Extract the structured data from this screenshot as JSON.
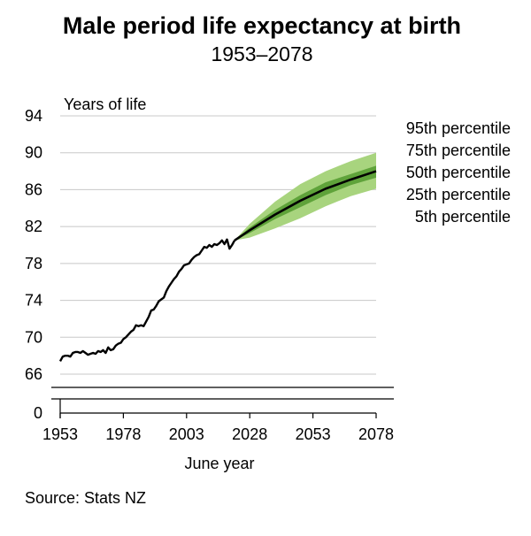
{
  "chart_data": {
    "type": "line",
    "title": "Male period life expectancy at birth",
    "subtitle": "1953–2078",
    "ylabel": "Years of life",
    "xlabel": "June year",
    "source": "Source: Stats NZ",
    "ylim": [
      66,
      94
    ],
    "xlim": [
      1953,
      2078
    ],
    "y_ticks": [
      "94",
      "90",
      "86",
      "82",
      "78",
      "74",
      "70",
      "66"
    ],
    "y_zero_tick": "0",
    "x_ticks": [
      "1953",
      "1978",
      "2003",
      "2028",
      "2053",
      "2078"
    ],
    "grid": true,
    "legend_position": "right",
    "band_labels": [
      "95th percentile",
      "75th percentile",
      "50th percentile",
      "25th percentile",
      "5th percentile"
    ],
    "colors": {
      "historical": "#000000",
      "median": "#000000",
      "band_outer": "#a8d47e",
      "band_inner": "#5fa33a"
    },
    "historical": {
      "x": [
        1953,
        1954,
        1955,
        1956,
        1957,
        1958,
        1959,
        1960,
        1961,
        1962,
        1963,
        1964,
        1965,
        1966,
        1967,
        1968,
        1969,
        1970,
        1971,
        1972,
        1973,
        1974,
        1975,
        1976,
        1977,
        1978,
        1979,
        1980,
        1981,
        1982,
        1983,
        1984,
        1985,
        1986,
        1987,
        1988,
        1989,
        1990,
        1991,
        1992,
        1993,
        1994,
        1995,
        1996,
        1997,
        1998,
        1999,
        2000,
        2001,
        2002,
        2003,
        2004,
        2005,
        2006,
        2007,
        2008,
        2009,
        2010,
        2011,
        2012,
        2013,
        2014,
        2015,
        2016,
        2017,
        2018,
        2019,
        2020,
        2021,
        2022
      ],
      "y": [
        67.4,
        67.9,
        68.0,
        68.0,
        67.9,
        68.3,
        68.4,
        68.4,
        68.3,
        68.5,
        68.3,
        68.1,
        68.2,
        68.3,
        68.2,
        68.5,
        68.4,
        68.6,
        68.3,
        68.9,
        68.6,
        68.7,
        69.1,
        69.3,
        69.4,
        69.8,
        70.0,
        70.3,
        70.6,
        70.8,
        71.3,
        71.2,
        71.3,
        71.2,
        71.7,
        72.2,
        72.9,
        73.0,
        73.4,
        73.9,
        74.1,
        74.3,
        75.0,
        75.5,
        75.9,
        76.3,
        76.6,
        77.1,
        77.4,
        77.8,
        77.9,
        78.0,
        78.4,
        78.7,
        78.9,
        79.0,
        79.4,
        79.8,
        79.7,
        80.0,
        79.8,
        80.1,
        80.0,
        80.2,
        80.5,
        80.1,
        80.6,
        79.6,
        80.0,
        80.5
      ]
    },
    "projection": {
      "x": [
        2022,
        2028,
        2038,
        2048,
        2058,
        2068,
        2078
      ],
      "p50": [
        80.5,
        81.6,
        83.3,
        84.8,
        86.1,
        87.1,
        88.0
      ],
      "p5": [
        80.5,
        80.8,
        81.8,
        82.9,
        84.2,
        85.3,
        86.1
      ],
      "p25": [
        80.5,
        81.3,
        82.8,
        84.1,
        85.4,
        86.5,
        87.3
      ],
      "p75": [
        80.5,
        81.9,
        83.8,
        85.4,
        86.8,
        87.7,
        88.6
      ],
      "p95": [
        80.5,
        82.3,
        84.7,
        86.6,
        88.0,
        89.1,
        90.0
      ]
    }
  }
}
